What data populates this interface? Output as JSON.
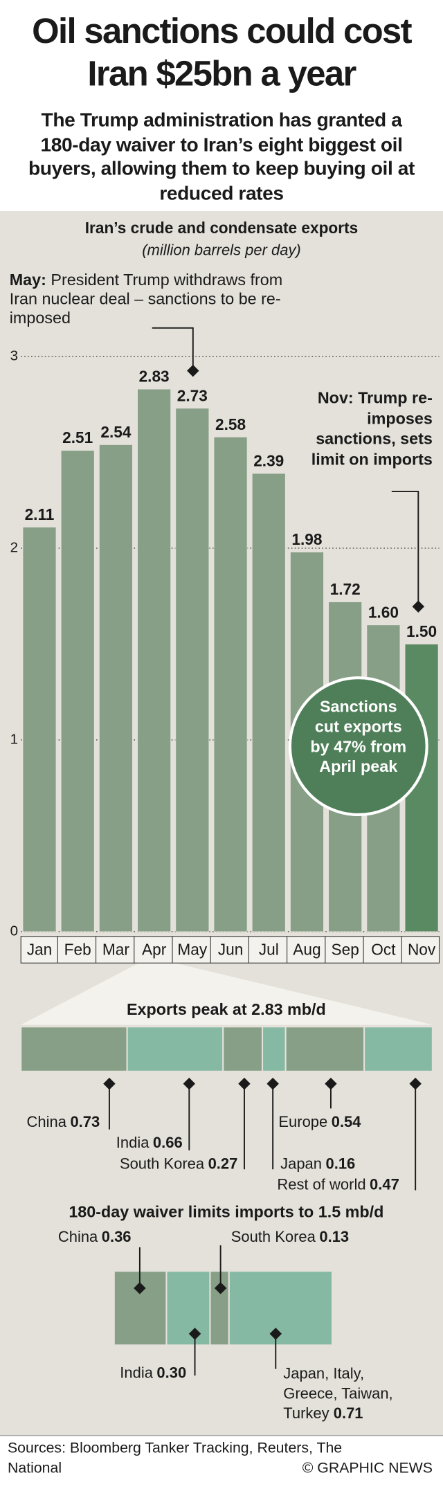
{
  "header": {
    "title": "Oil sanctions could cost Iran $25bn a year",
    "subtitle": "The Trump administration has granted a 180-day waiver to Iran’s eight biggest oil buyers, allowing them to keep buying oil at reduced rates"
  },
  "chart_data": [
    {
      "type": "bar",
      "title": "Iran’s crude and condensate exports",
      "subtitle": "(million barrels per day)",
      "categories": [
        "Jan",
        "Feb",
        "Mar",
        "Apr",
        "May",
        "Jun",
        "Jul",
        "Aug",
        "Sep",
        "Oct",
        "Nov"
      ],
      "values": [
        2.11,
        2.51,
        2.54,
        2.83,
        2.73,
        2.58,
        2.39,
        1.98,
        1.72,
        1.6,
        1.5
      ],
      "value_labels": [
        "2.11",
        "2.51",
        "2.54",
        "2.83",
        "2.73",
        "2.58",
        "2.39",
        "1.98",
        "1.72",
        "1.60",
        "1.50"
      ],
      "colors": [
        "#879f86",
        "#879f86",
        "#879f86",
        "#879f86",
        "#879f86",
        "#879f86",
        "#879f86",
        "#879f86",
        "#879f86",
        "#879f86",
        "#5a8a62"
      ],
      "ylim": [
        0,
        3
      ],
      "yticks": [
        0,
        1,
        2,
        3
      ],
      "grid": true,
      "annotations": [
        {
          "label": "May:",
          "text": "President Trump withdraws from Iran nuclear deal – sanctions to be re-imposed"
        },
        {
          "label": "Nov:",
          "text": "Trump re-imposes sanctions, sets limit on imports"
        }
      ],
      "callout": "Sanctions cut exports by 47% from April peak"
    },
    {
      "type": "stacked-bar",
      "title": "Exports peak at 2.83 mb/d",
      "series": [
        {
          "name": "China",
          "color": "#879f86",
          "values": [
            0.73
          ]
        },
        {
          "name": "India",
          "color": "#86b9a3",
          "values": [
            0.66
          ]
        },
        {
          "name": "South Korea",
          "color": "#879f86",
          "values": [
            0.27
          ]
        },
        {
          "name": "Japan",
          "color": "#86b9a3",
          "values": [
            0.16
          ]
        },
        {
          "name": "Europe",
          "color": "#879f86",
          "values": [
            0.54
          ]
        },
        {
          "name": "Rest of world",
          "color": "#86b9a3",
          "values": [
            0.47
          ]
        }
      ]
    },
    {
      "type": "stacked-bar",
      "title": "180-day waiver limits imports to 1.5 mb/d",
      "series": [
        {
          "name": "China",
          "color": "#879f86",
          "values": [
            0.36
          ]
        },
        {
          "name": "India",
          "color": "#86b9a3",
          "values": [
            0.3
          ],
          "value_labels": [
            "0.30"
          ]
        },
        {
          "name": "South Korea",
          "color": "#879f86",
          "values": [
            0.13
          ]
        },
        {
          "name": "Japan, Italy, Greece, Taiwan, Turkey",
          "color": "#86b9a3",
          "values": [
            0.71
          ]
        }
      ]
    }
  ],
  "footer": {
    "sources": "Sources: Bloomberg Tanker Tracking, Reuters, The National",
    "credit": "© GRAPHIC NEWS"
  }
}
